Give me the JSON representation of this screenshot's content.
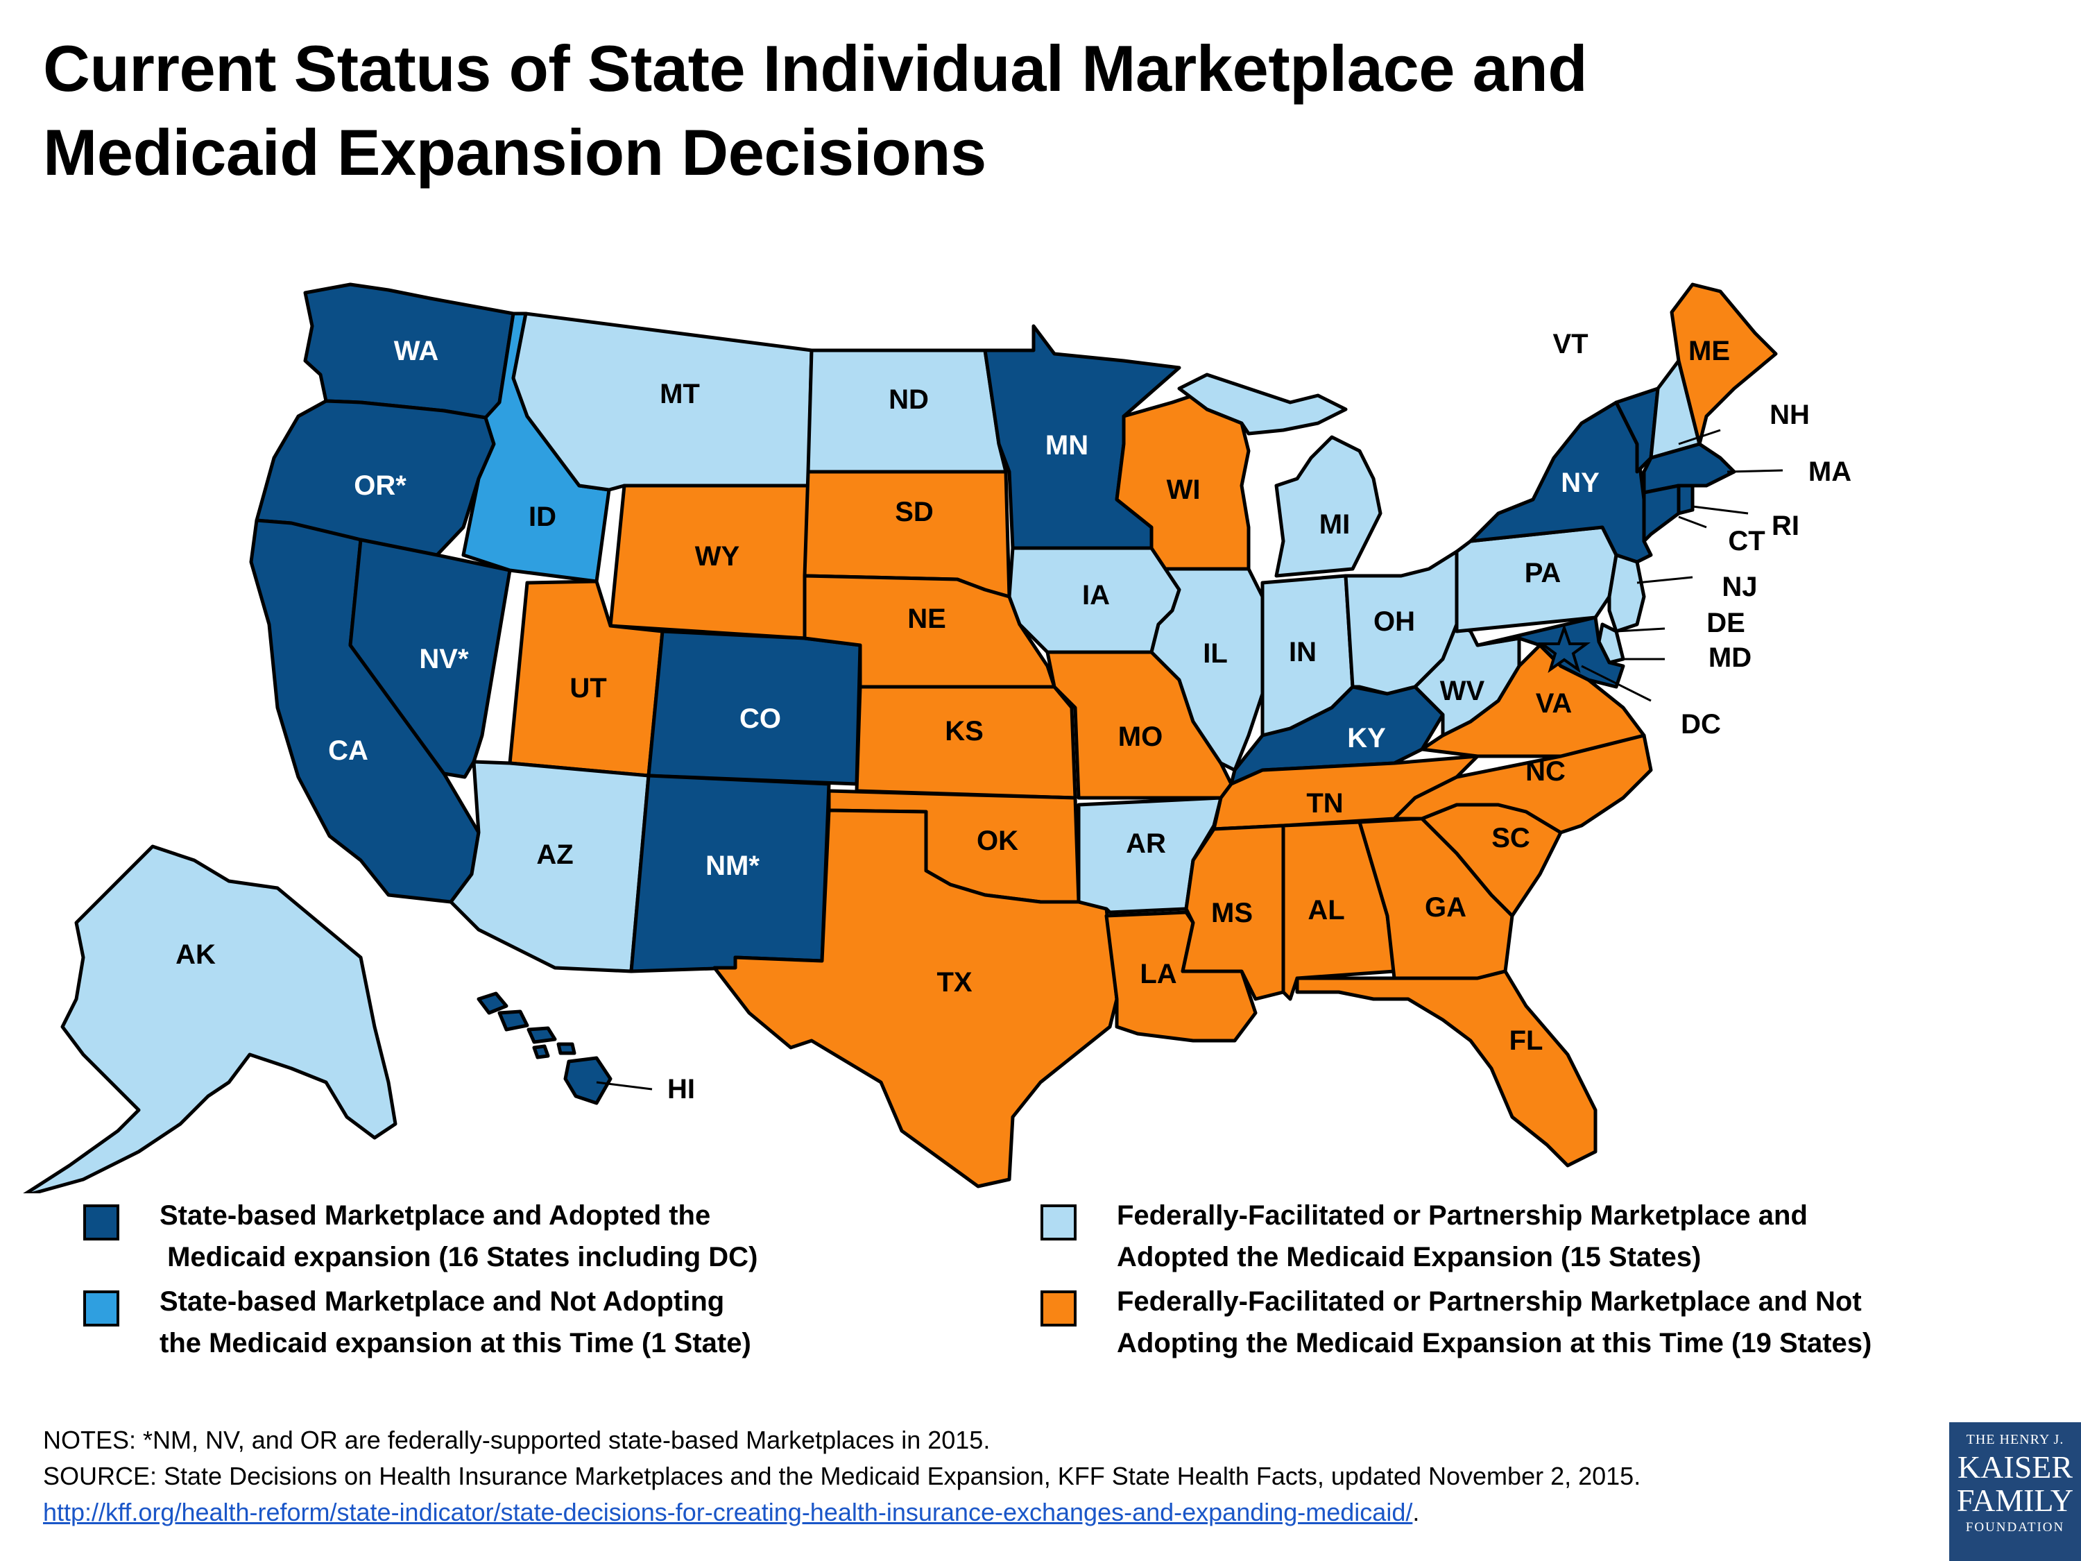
{
  "title_line1": "Current Status of State Individual Marketplace and",
  "title_line2": "Medicaid Expansion Decisions",
  "colors": {
    "sbm_expand": "#0b4e86",
    "sbm_no_expand": "#2f9fe0",
    "ffm_expand": "#b1dcf3",
    "ffm_no_expand": "#f98514"
  },
  "states": [
    {
      "abbr": "WA",
      "cat": "sbm_expand"
    },
    {
      "abbr": "OR*",
      "cat": "sbm_expand"
    },
    {
      "abbr": "CA",
      "cat": "sbm_expand"
    },
    {
      "abbr": "NV*",
      "cat": "sbm_expand"
    },
    {
      "abbr": "ID",
      "cat": "sbm_no_expand"
    },
    {
      "abbr": "MT",
      "cat": "ffm_expand"
    },
    {
      "abbr": "WY",
      "cat": "ffm_no_expand"
    },
    {
      "abbr": "UT",
      "cat": "ffm_no_expand"
    },
    {
      "abbr": "AZ",
      "cat": "ffm_expand"
    },
    {
      "abbr": "CO",
      "cat": "sbm_expand"
    },
    {
      "abbr": "NM*",
      "cat": "sbm_expand"
    },
    {
      "abbr": "ND",
      "cat": "ffm_expand"
    },
    {
      "abbr": "SD",
      "cat": "ffm_no_expand"
    },
    {
      "abbr": "NE",
      "cat": "ffm_no_expand"
    },
    {
      "abbr": "KS",
      "cat": "ffm_no_expand"
    },
    {
      "abbr": "OK",
      "cat": "ffm_no_expand"
    },
    {
      "abbr": "TX",
      "cat": "ffm_no_expand"
    },
    {
      "abbr": "MN",
      "cat": "sbm_expand"
    },
    {
      "abbr": "IA",
      "cat": "ffm_expand"
    },
    {
      "abbr": "MO",
      "cat": "ffm_no_expand"
    },
    {
      "abbr": "AR",
      "cat": "ffm_expand"
    },
    {
      "abbr": "LA",
      "cat": "ffm_no_expand"
    },
    {
      "abbr": "WI",
      "cat": "ffm_no_expand"
    },
    {
      "abbr": "IL",
      "cat": "ffm_expand"
    },
    {
      "abbr": "MI",
      "cat": "ffm_expand"
    },
    {
      "abbr": "IN",
      "cat": "ffm_expand"
    },
    {
      "abbr": "OH",
      "cat": "ffm_expand"
    },
    {
      "abbr": "KY",
      "cat": "sbm_expand"
    },
    {
      "abbr": "TN",
      "cat": "ffm_no_expand"
    },
    {
      "abbr": "MS",
      "cat": "ffm_no_expand"
    },
    {
      "abbr": "AL",
      "cat": "ffm_no_expand"
    },
    {
      "abbr": "GA",
      "cat": "ffm_no_expand"
    },
    {
      "abbr": "FL",
      "cat": "ffm_no_expand"
    },
    {
      "abbr": "SC",
      "cat": "ffm_no_expand"
    },
    {
      "abbr": "NC",
      "cat": "ffm_no_expand"
    },
    {
      "abbr": "VA",
      "cat": "ffm_no_expand"
    },
    {
      "abbr": "WV",
      "cat": "ffm_expand"
    },
    {
      "abbr": "PA",
      "cat": "ffm_expand"
    },
    {
      "abbr": "NY",
      "cat": "sbm_expand"
    },
    {
      "abbr": "VT",
      "cat": "sbm_expand"
    },
    {
      "abbr": "NH",
      "cat": "ffm_expand"
    },
    {
      "abbr": "ME",
      "cat": "ffm_no_expand"
    },
    {
      "abbr": "MA",
      "cat": "sbm_expand"
    },
    {
      "abbr": "RI",
      "cat": "sbm_expand"
    },
    {
      "abbr": "CT",
      "cat": "sbm_expand"
    },
    {
      "abbr": "NJ",
      "cat": "ffm_expand"
    },
    {
      "abbr": "DE",
      "cat": "ffm_expand"
    },
    {
      "abbr": "MD",
      "cat": "sbm_expand"
    },
    {
      "abbr": "DC",
      "cat": "sbm_expand"
    },
    {
      "abbr": "AK",
      "cat": "ffm_expand"
    },
    {
      "abbr": "HI",
      "cat": "sbm_expand"
    }
  ],
  "legend": [
    {
      "cat": "sbm_expand",
      "line1": "State-based Marketplace and Adopted the",
      "line2": " Medicaid expansion (16 States including DC)"
    },
    {
      "cat": "sbm_no_expand",
      "line1": "State-based Marketplace and Not Adopting",
      "line2": "the Medicaid expansion at this Time (1 State)"
    },
    {
      "cat": "ffm_expand",
      "line1": "Federally-Facilitated or Partnership Marketplace and",
      "line2": "Adopted the Medicaid Expansion (15 States)"
    },
    {
      "cat": "ffm_no_expand",
      "line1": "Federally-Facilitated or Partnership Marketplace and Not",
      "line2": "Adopting the Medicaid Expansion at this Time (19 States)"
    }
  ],
  "notes": {
    "line1": "NOTES: *NM, NV, and OR are federally-supported state-based Marketplaces in 2015.",
    "line2": "SOURCE: State Decisions on Health Insurance Marketplaces and the Medicaid Expansion, KFF State Health Facts, updated November 2, 2015.",
    "link": "http://kff.org/health-reform/state-indicator/state-decisions-for-creating-health-insurance-exchanges-and-expanding-medicaid/",
    "link_suffix": "."
  },
  "logo": {
    "line1": "THE HENRY J.",
    "line2": "KAISER",
    "line3": "FAMILY",
    "line4": "FOUNDATION"
  }
}
